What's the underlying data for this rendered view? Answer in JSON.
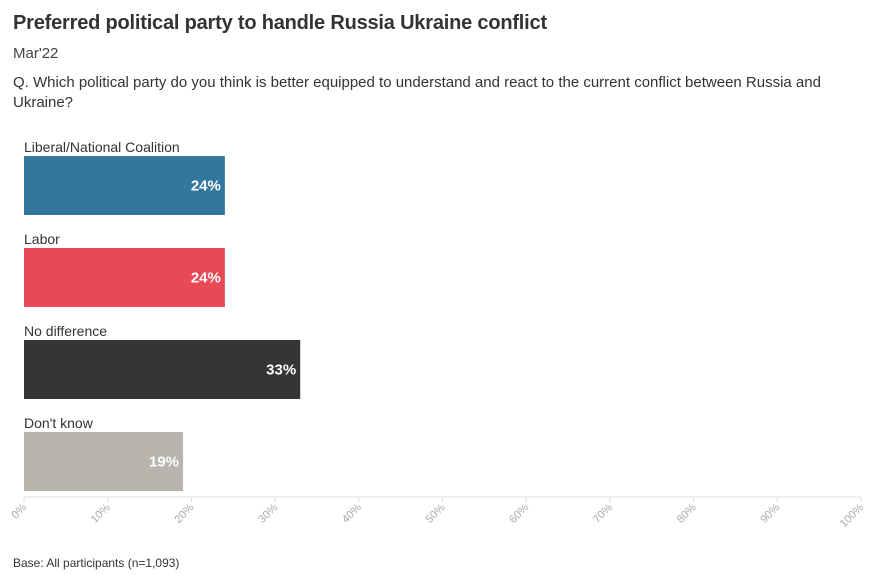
{
  "header": {
    "title": "Preferred political party to handle Russia Ukraine conflict",
    "subtitle": "Mar'22",
    "question": "Q. Which political party do you think is better equipped to understand and react to the current conflict between Russia and Ukraine?"
  },
  "footer": {
    "base": "Base: All participants (n=1,093)"
  },
  "chart_data": {
    "type": "bar",
    "orientation": "horizontal",
    "title": "Preferred political party to handle Russia Ukraine conflict",
    "categories": [
      "Liberal/National Coalition",
      "Labor",
      "No difference",
      "Don't know"
    ],
    "values": [
      24,
      24,
      33,
      19
    ],
    "value_labels": [
      "24%",
      "24%",
      "33%",
      "19%"
    ],
    "colors": [
      "#33779f",
      "#e84a55",
      "#363535",
      "#b8b4ae"
    ],
    "xlim": [
      0,
      100
    ],
    "x_ticks": [
      "0%",
      "10%",
      "20%",
      "30%",
      "40%",
      "50%",
      "60%",
      "70%",
      "80%",
      "90%",
      "100%"
    ],
    "grid": false,
    "legend": "none"
  }
}
